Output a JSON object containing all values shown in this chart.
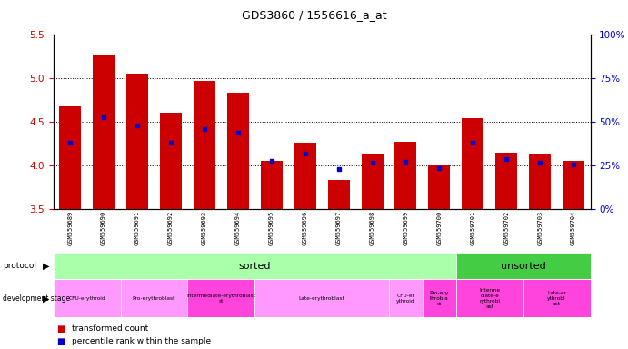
{
  "title": "GDS3860 / 1556616_a_at",
  "samples": [
    "GSM559689",
    "GSM559690",
    "GSM559691",
    "GSM559692",
    "GSM559693",
    "GSM559694",
    "GSM559695",
    "GSM559696",
    "GSM559697",
    "GSM559698",
    "GSM559699",
    "GSM559700",
    "GSM559701",
    "GSM559702",
    "GSM559703",
    "GSM559704"
  ],
  "bar_values": [
    4.68,
    5.28,
    5.06,
    4.61,
    4.97,
    4.84,
    4.06,
    4.26,
    3.84,
    4.14,
    4.28,
    4.01,
    4.55,
    4.15,
    4.14,
    4.06
  ],
  "blue_values": [
    4.26,
    4.56,
    4.46,
    4.26,
    4.42,
    4.38,
    4.06,
    4.14,
    3.96,
    4.04,
    4.05,
    3.97,
    4.26,
    4.08,
    4.04,
    4.01
  ],
  "ymin": 3.5,
  "ymax": 5.5,
  "yticks_left": [
    3.5,
    4.0,
    4.5,
    5.0,
    5.5
  ],
  "yticks_right_vals": [
    0,
    25,
    50,
    75,
    100
  ],
  "yticks_right_labels": [
    "0%",
    "25%",
    "50%",
    "75%",
    "100%"
  ],
  "bar_color": "#cc0000",
  "blue_color": "#0000cc",
  "bar_bottom": 3.5,
  "protocol_color_sorted": "#aaffaa",
  "protocol_color_unsorted": "#44cc44",
  "bg_color": "#ffffff",
  "tick_label_color_left": "#cc0000",
  "tick_label_color_right": "#0000cc",
  "xticklabel_bg": "#cccccc",
  "dev_groups": [
    {
      "label": "CFU-erythroid",
      "start": 0,
      "end": 2,
      "color": "#ff99ff"
    },
    {
      "label": "Pro-erythroblast",
      "start": 2,
      "end": 4,
      "color": "#ff99ff"
    },
    {
      "label": "Intermediate-erythroblast\nst",
      "start": 4,
      "end": 6,
      "color": "#ff44dd"
    },
    {
      "label": "Late-erythroblast",
      "start": 6,
      "end": 10,
      "color": "#ff99ff"
    },
    {
      "label": "CFU-er\nythroid",
      "start": 10,
      "end": 11,
      "color": "#ff99ff"
    },
    {
      "label": "Pro-ery\nthrobla\nst",
      "start": 11,
      "end": 12,
      "color": "#ff44dd"
    },
    {
      "label": "Interme\ndiate-e\nrythrobl\nast",
      "start": 12,
      "end": 14,
      "color": "#ff44dd"
    },
    {
      "label": "Late-er\nythrobl\nast",
      "start": 14,
      "end": 16,
      "color": "#ff44dd"
    }
  ]
}
